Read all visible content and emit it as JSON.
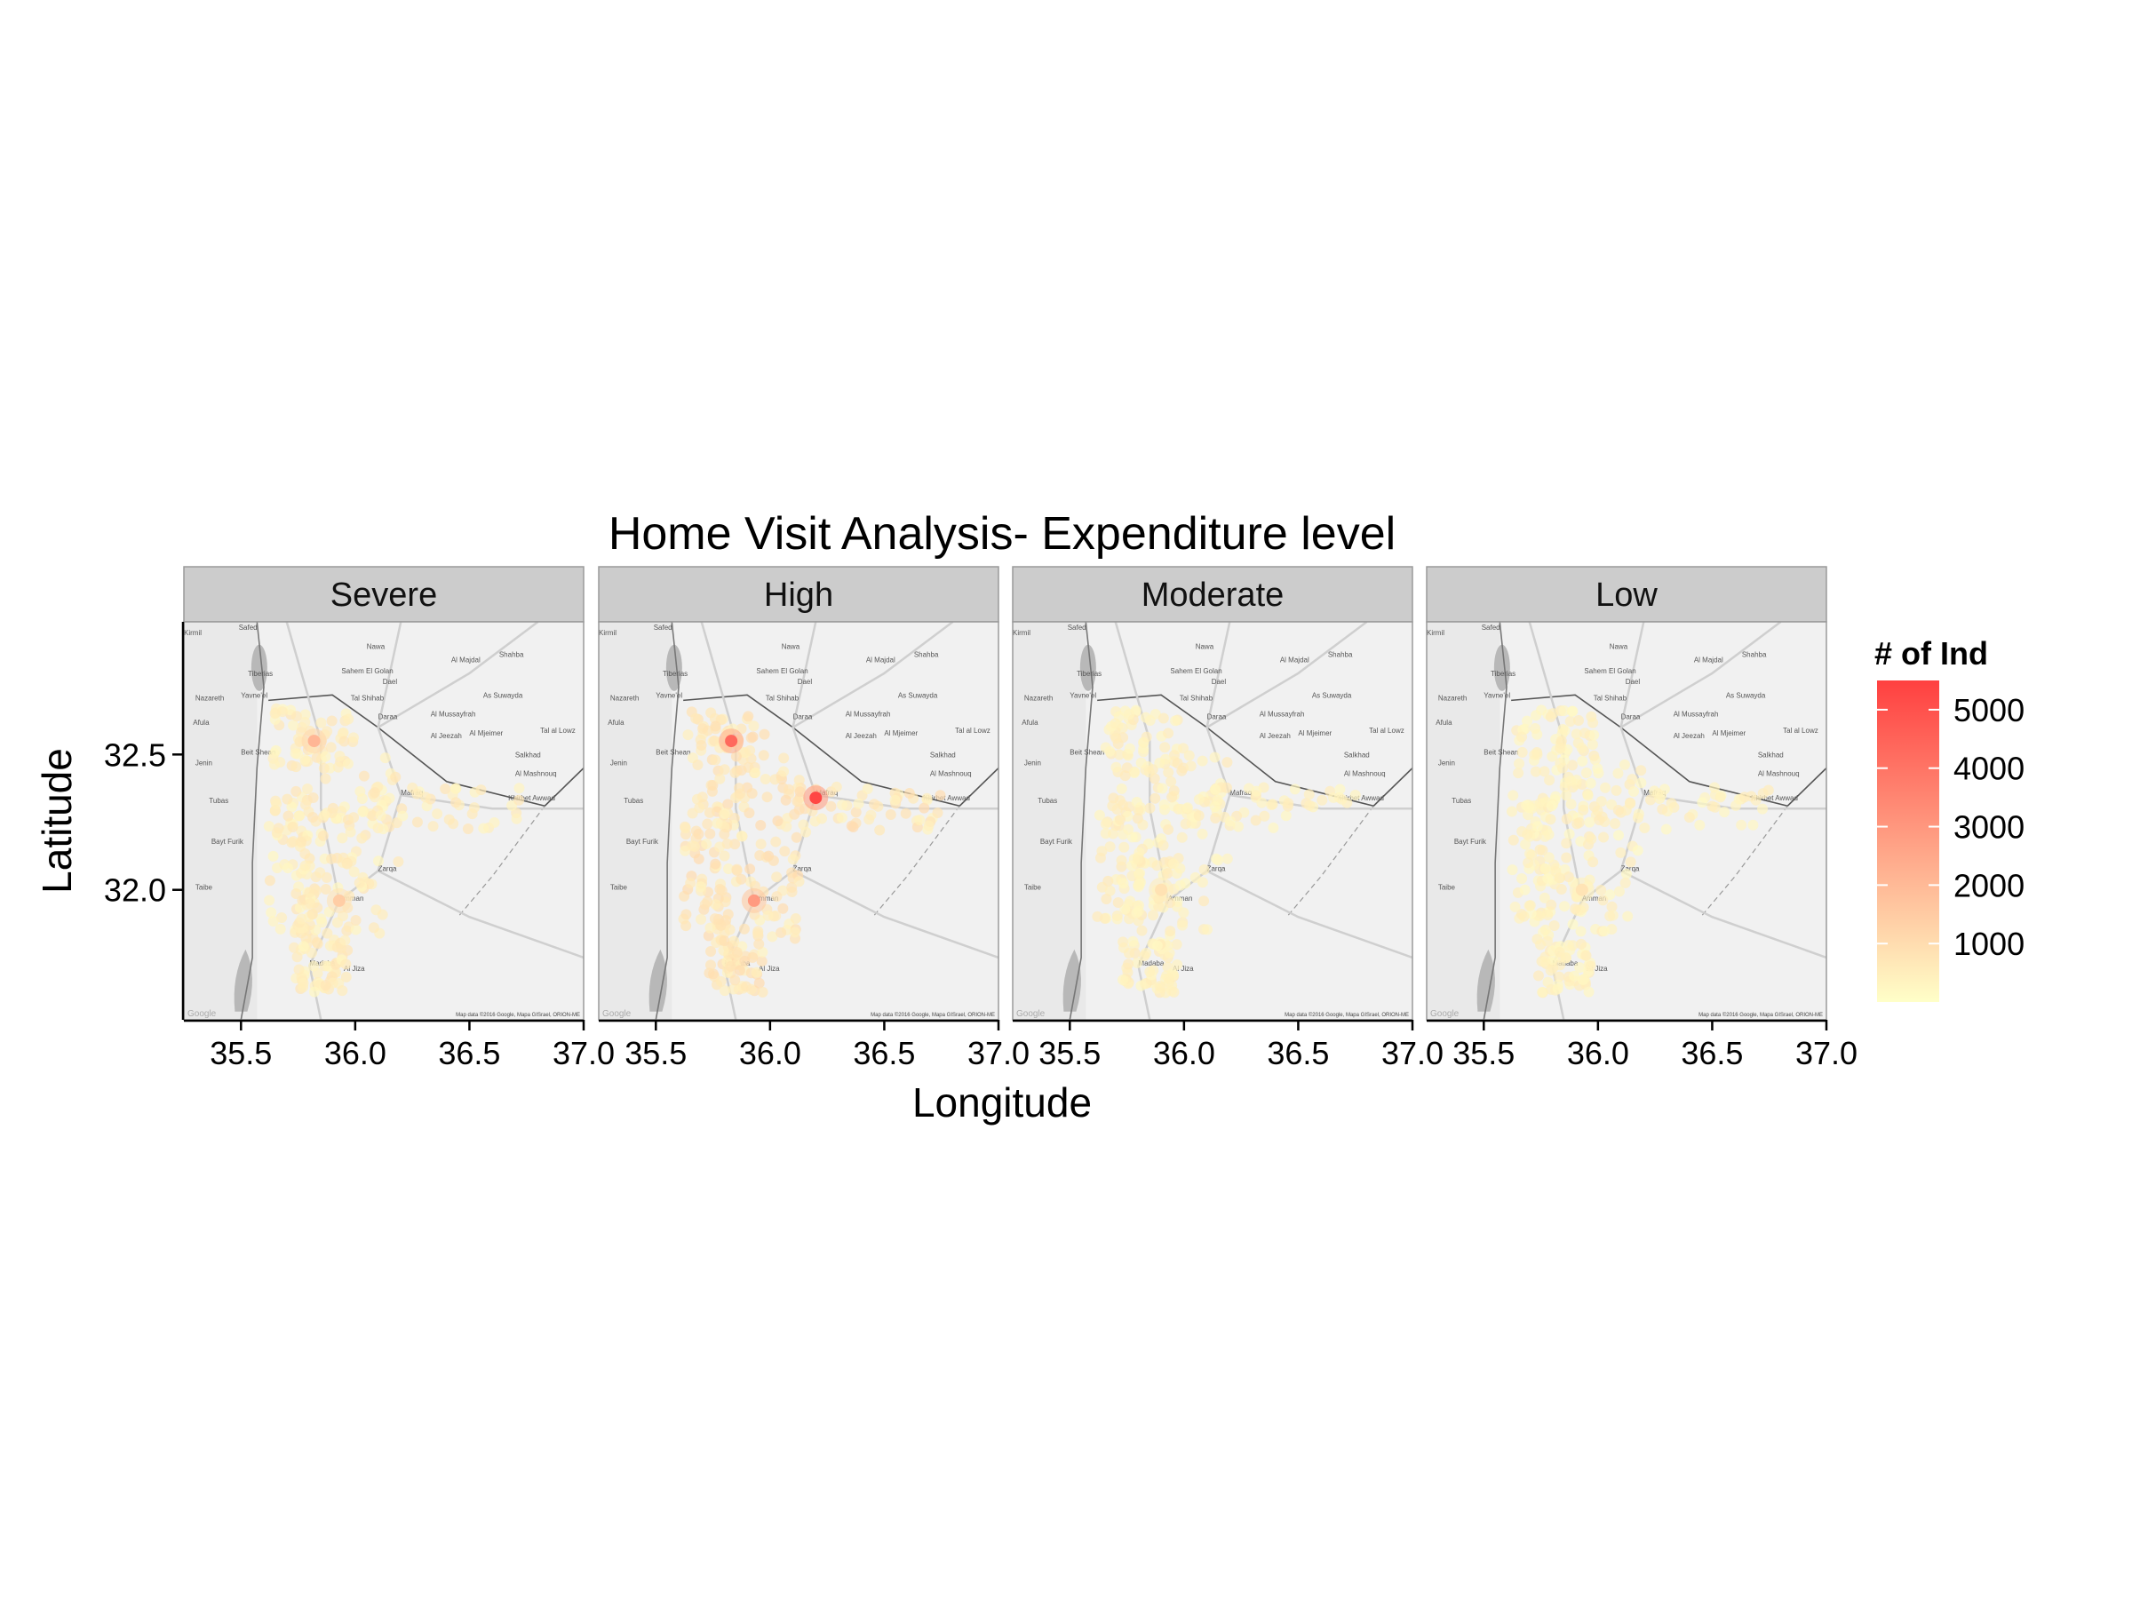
{
  "chart_data": {
    "type": "heatmap",
    "title": "Home Visit Analysis- Expenditure level",
    "xlabel": "Longitude",
    "ylabel": "Latitude",
    "xlim": [
      35.25,
      37.0
    ],
    "ylim": [
      31.52,
      32.99
    ],
    "x_ticks": [
      "35.5",
      "36.0",
      "36.5",
      "37.0"
    ],
    "y_ticks": [
      "32.0",
      "32.5"
    ],
    "y_tick_values": [
      32.0,
      32.5
    ],
    "x_tick_values": [
      35.5,
      36.0,
      36.5,
      37.0
    ],
    "facets": [
      {
        "label": "Severe",
        "hotspots": [
          {
            "lon": 35.82,
            "lat": 32.55,
            "value": 2200
          },
          {
            "lon": 35.93,
            "lat": 31.96,
            "value": 1500
          }
        ]
      },
      {
        "label": "High",
        "hotspots": [
          {
            "lon": 35.83,
            "lat": 32.55,
            "value": 4500
          },
          {
            "lon": 36.2,
            "lat": 32.34,
            "value": 5500
          },
          {
            "lon": 35.93,
            "lat": 31.96,
            "value": 3000
          }
        ]
      },
      {
        "label": "Moderate",
        "hotspots": [
          {
            "lon": 35.9,
            "lat": 32.0,
            "value": 900
          }
        ]
      },
      {
        "label": "Low",
        "hotspots": [
          {
            "lon": 35.93,
            "lat": 32.0,
            "value": 800
          }
        ]
      }
    ],
    "legend": {
      "title": "# of Ind",
      "breaks": [
        "5000",
        "4000",
        "3000",
        "2000",
        "1000"
      ],
      "break_values": [
        5000,
        4000,
        3000,
        2000,
        1000
      ],
      "range": [
        0,
        5500
      ],
      "low_color": "#ffffc8",
      "high_color": "#ff4040",
      "position": "right"
    },
    "grid": false
  },
  "map": {
    "attribution": "Map data ©2016 Google, Mapa GISrael, ORION-ME",
    "watermark": "Google",
    "places": [
      {
        "name": "Safed",
        "lon": 35.49,
        "lat": 32.96
      },
      {
        "name": "Kirmil",
        "lon": 35.25,
        "lat": 32.94
      },
      {
        "name": "Tiberias",
        "lon": 35.53,
        "lat": 32.79
      },
      {
        "name": "Nazareth",
        "lon": 35.3,
        "lat": 32.7
      },
      {
        "name": "Yavne'el",
        "lon": 35.5,
        "lat": 32.71
      },
      {
        "name": "Afula",
        "lon": 35.29,
        "lat": 32.61
      },
      {
        "name": "Beit Shean",
        "lon": 35.5,
        "lat": 32.5
      },
      {
        "name": "Jenin",
        "lon": 35.3,
        "lat": 32.46
      },
      {
        "name": "Tubas",
        "lon": 35.36,
        "lat": 32.32
      },
      {
        "name": "Bayt Furik",
        "lon": 35.37,
        "lat": 32.17
      },
      {
        "name": "Taibe",
        "lon": 35.3,
        "lat": 32.0
      },
      {
        "name": "Nawa",
        "lon": 36.05,
        "lat": 32.89
      },
      {
        "name": "Sahem El Golan",
        "lon": 35.94,
        "lat": 32.8
      },
      {
        "name": "Tal Shihab",
        "lon": 35.98,
        "lat": 32.7
      },
      {
        "name": "Daraa",
        "lon": 36.1,
        "lat": 32.63
      },
      {
        "name": "Dael",
        "lon": 36.12,
        "lat": 32.76
      },
      {
        "name": "Al Majdal",
        "lon": 36.42,
        "lat": 32.84
      },
      {
        "name": "As Suwayda",
        "lon": 36.56,
        "lat": 32.71
      },
      {
        "name": "Al Mussayfrah",
        "lon": 36.33,
        "lat": 32.64
      },
      {
        "name": "Al Jeezah",
        "lon": 36.33,
        "lat": 32.56
      },
      {
        "name": "Al Mjeimer",
        "lon": 36.5,
        "lat": 32.57
      },
      {
        "name": "Salkhad",
        "lon": 36.7,
        "lat": 32.49
      },
      {
        "name": "Tal al Lowz",
        "lon": 36.81,
        "lat": 32.58
      },
      {
        "name": "Al Mashnouq",
        "lon": 36.7,
        "lat": 32.42
      },
      {
        "name": "Khirbet Awwad",
        "lon": 36.67,
        "lat": 32.33
      },
      {
        "name": "Shahba",
        "lon": 36.63,
        "lat": 32.86
      },
      {
        "name": "Mafraq",
        "lon": 36.2,
        "lat": 32.35
      },
      {
        "name": "Zarqa",
        "lon": 36.1,
        "lat": 32.07
      },
      {
        "name": "Amman",
        "lon": 35.93,
        "lat": 31.96
      },
      {
        "name": "Madaba",
        "lon": 35.8,
        "lat": 31.72
      },
      {
        "name": "Al Jiza",
        "lon": 35.95,
        "lat": 31.7
      }
    ]
  }
}
